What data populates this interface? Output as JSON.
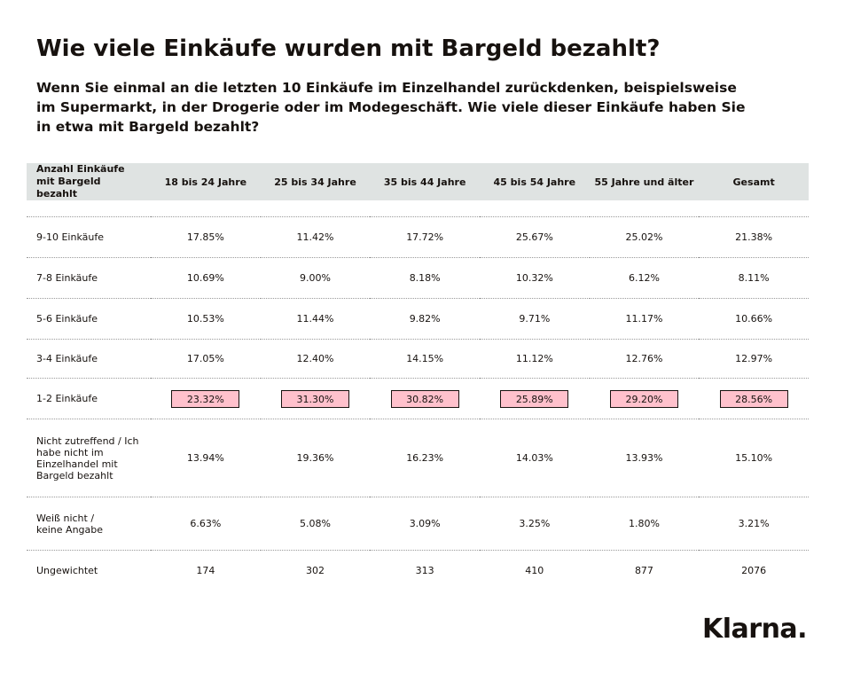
{
  "title": "Wie viele Einkäufe wurden mit Bargeld bezahlt?",
  "subtitle": "Wenn Sie einmal an die letzten 10 Einkäufe im Einzelhandel zurückdenken, beispielsweise im Supermarkt, in der Drogerie oder im Modegeschäft. Wie viele dieser Einkäufe haben Sie in etwa mit Bargeld bezahlt?",
  "table": {
    "header_first": "Anzahl Einkäufe mit Bargeld bezahlt",
    "columns": [
      "18 bis 24 Jahre",
      "25 bis 34 Jahre",
      "35 bis 44 Jahre",
      "45 bis 54 Jahre",
      "55 Jahre und älter",
      "Gesamt"
    ],
    "rows": [
      {
        "label": "9-10 Einkäufe",
        "values": [
          "17.85%",
          "11.42%",
          "17.72%",
          "25.67%",
          "25.02%",
          "21.38%"
        ]
      },
      {
        "label": "7-8 Einkäufe",
        "values": [
          "10.69%",
          "9.00%",
          "8.18%",
          "10.32%",
          "6.12%",
          "8.11%"
        ]
      },
      {
        "label": "5-6 Einkäufe",
        "values": [
          "10.53%",
          "11.44%",
          "9.82%",
          "9.71%",
          "11.17%",
          "10.66%"
        ]
      },
      {
        "label": "3-4 Einkäufe",
        "values": [
          "17.05%",
          "12.40%",
          "14.15%",
          "11.12%",
          "12.76%",
          "12.97%"
        ]
      },
      {
        "label": "1-2 Einkäufe",
        "values": [
          "23.32%",
          "31.30%",
          "30.82%",
          "25.89%",
          "29.20%",
          "28.56%"
        ],
        "highlight": true
      },
      {
        "label": "Nicht zutreffend / Ich habe nicht im Einzelhandel mit Bargeld bezahlt",
        "values": [
          "13.94%",
          "19.36%",
          "16.23%",
          "14.03%",
          "13.93%",
          "15.10%"
        ]
      },
      {
        "label": "Weiß nicht / keine Angabe",
        "values": [
          "6.63%",
          "5.08%",
          "3.09%",
          "3.25%",
          "1.80%",
          "3.21%"
        ]
      },
      {
        "label": "Ungewichtet",
        "values": [
          "174",
          "302",
          "313",
          "410",
          "877",
          "2076"
        ]
      }
    ]
  },
  "highlight_color": "#ffc1cc",
  "logo_text": "Klarna."
}
